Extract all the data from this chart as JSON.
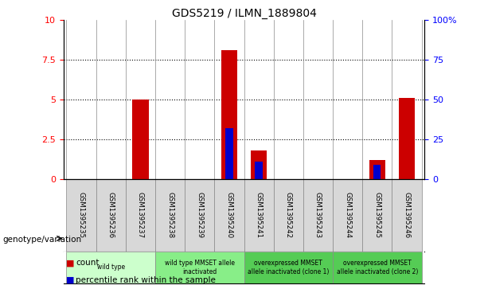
{
  "title": "GDS5219 / ILMN_1889804",
  "samples": [
    "GSM1395235",
    "GSM1395236",
    "GSM1395237",
    "GSM1395238",
    "GSM1395239",
    "GSM1395240",
    "GSM1395241",
    "GSM1395242",
    "GSM1395243",
    "GSM1395244",
    "GSM1395245",
    "GSM1395246"
  ],
  "count_values": [
    0,
    0,
    5.0,
    0,
    0,
    8.1,
    1.8,
    0,
    0,
    0,
    1.2,
    5.1
  ],
  "percentile_values": [
    0,
    0,
    0,
    0,
    0,
    32,
    11,
    0,
    0,
    0,
    9,
    0
  ],
  "ylim_left": [
    0,
    10
  ],
  "ylim_right": [
    0,
    100
  ],
  "yticks_left": [
    0,
    2.5,
    5,
    7.5,
    10
  ],
  "yticks_right": [
    0,
    25,
    50,
    75,
    100
  ],
  "bar_color_count": "#cc0000",
  "bar_color_percentile": "#0000cc",
  "group_colors": [
    "#ccffcc",
    "#99ee99",
    "#66dd66",
    "#66dd66"
  ],
  "group_ranges": [
    [
      0,
      2
    ],
    [
      3,
      5
    ],
    [
      6,
      8
    ],
    [
      9,
      11
    ]
  ],
  "group_labels": [
    "wild type",
    "wild type MMSET allele\ninactivated",
    "overexpressed MMSET\nallele inactivated (clone 1)",
    "overexpressed MMSET\nallele inactivated (clone 2)"
  ],
  "legend_count_label": "count",
  "legend_percentile_label": "percentile rank within the sample",
  "genotype_label": "genotype/variation",
  "bar_width": 0.55,
  "pct_bar_width": 0.25,
  "cell_bg_color": "#d8d8d8",
  "title_fontsize": 10
}
